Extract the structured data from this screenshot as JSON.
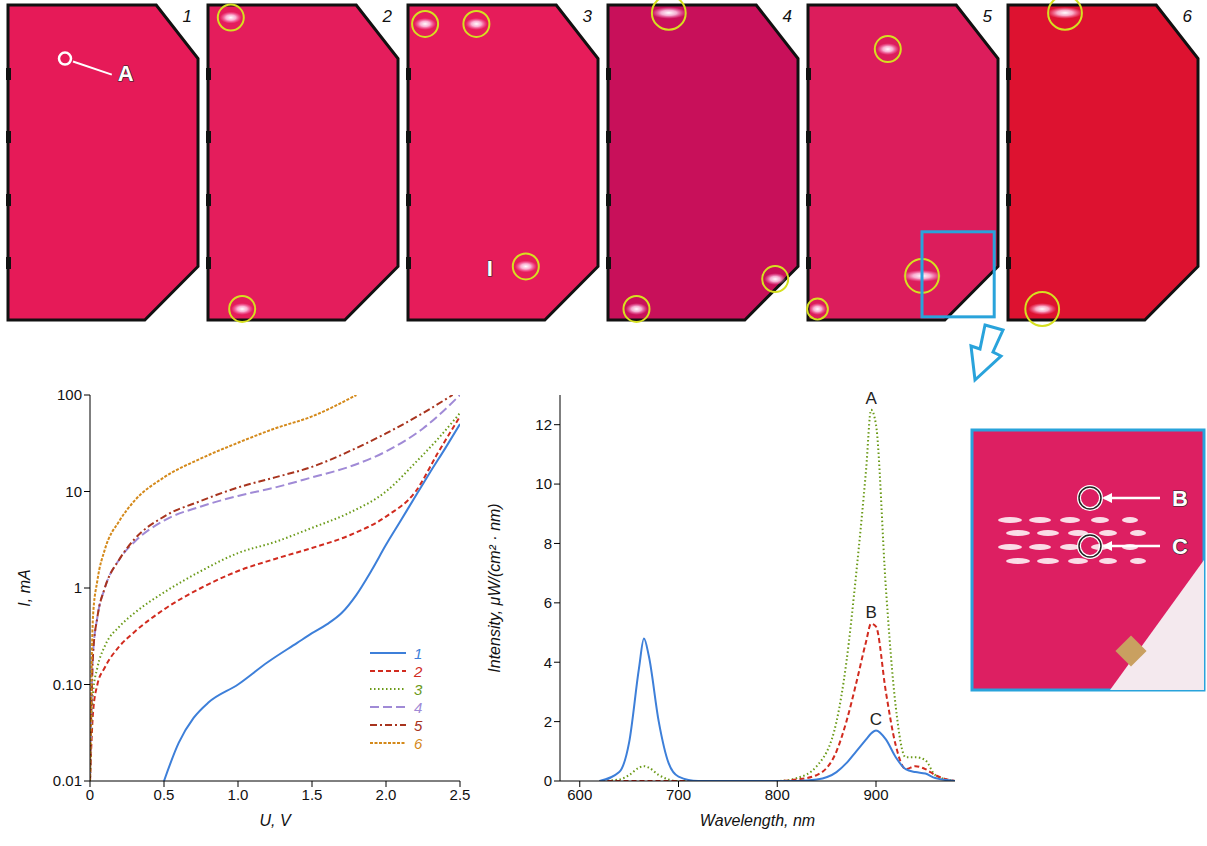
{
  "photos": {
    "panels": [
      {
        "label": "1",
        "markers": [
          "A"
        ]
      },
      {
        "label": "2"
      },
      {
        "label": "3",
        "markers": [
          "I"
        ]
      },
      {
        "label": "4"
      },
      {
        "label": "5"
      },
      {
        "label": "6"
      }
    ],
    "inset": {
      "markers": [
        "B",
        "C"
      ]
    }
  },
  "chart_data": [
    {
      "type": "line",
      "x_label": "U, V",
      "y_label": "I, mA",
      "log": "y",
      "xlim": [
        0,
        2.5
      ],
      "xticks": [
        0,
        0.5,
        {
          "value": 1,
          "label": "1.0"
        },
        1.5,
        {
          "value": 2,
          "label": "2.0"
        },
        2.5
      ],
      "ylim": [
        0.01,
        100
      ],
      "yticks": [
        0.01,
        {
          "value": 0.1,
          "label": "0.10"
        },
        1,
        10,
        100
      ],
      "legend": "lower right",
      "series": [
        {
          "name": "1",
          "color": "#3d7fd9",
          "line_style": "solid",
          "x": [
            0.5,
            0.6,
            0.7,
            0.8,
            1.0,
            1.2,
            1.4,
            1.5,
            1.6,
            1.7,
            1.8,
            1.9,
            2.0,
            2.1,
            2.2,
            2.3,
            2.4,
            2.5
          ],
          "values": [
            0.01,
            0.025,
            0.045,
            0.065,
            0.1,
            0.17,
            0.27,
            0.34,
            0.42,
            0.55,
            0.85,
            1.5,
            2.8,
            5,
            9,
            16,
            28,
            50
          ]
        },
        {
          "name": "2",
          "color": "#d12b1f",
          "line_style": "dashed",
          "x": [
            0,
            0.02,
            0.05,
            0.1,
            0.2,
            0.3,
            0.5,
            0.75,
            1.0,
            1.25,
            1.5,
            1.75,
            2.0,
            2.2,
            2.35,
            2.5
          ],
          "values": [
            0.01,
            0.05,
            0.1,
            0.15,
            0.25,
            0.35,
            0.6,
            1.0,
            1.5,
            2.0,
            2.6,
            3.5,
            5.5,
            10,
            25,
            60
          ]
        },
        {
          "name": "3",
          "color": "#6b9a18",
          "line_style": "dotted",
          "x": [
            0,
            0.02,
            0.05,
            0.1,
            0.2,
            0.3,
            0.5,
            0.75,
            1.0,
            1.25,
            1.5,
            1.75,
            2.0,
            2.2,
            2.35,
            2.5
          ],
          "values": [
            0.01,
            0.08,
            0.15,
            0.25,
            0.4,
            0.55,
            0.9,
            1.5,
            2.3,
            3.0,
            4.2,
            6,
            10,
            20,
            35,
            65
          ]
        },
        {
          "name": "4",
          "color": "#a08ad6",
          "line_style": "long_dashed",
          "x": [
            0,
            0.02,
            0.05,
            0.1,
            0.2,
            0.3,
            0.5,
            0.75,
            1.0,
            1.25,
            1.5,
            1.75,
            2.0,
            2.25,
            2.5
          ],
          "values": [
            0.01,
            0.2,
            0.5,
            1.0,
            2.0,
            3.0,
            5,
            7,
            9,
            11,
            14,
            18,
            26,
            45,
            100
          ]
        },
        {
          "name": "5",
          "color": "#a8341e",
          "line_style": "dash_dot",
          "x": [
            0,
            0.02,
            0.05,
            0.1,
            0.2,
            0.3,
            0.5,
            0.75,
            1.0,
            1.25,
            1.5,
            1.75,
            2.0,
            2.25,
            2.45
          ],
          "values": [
            0.01,
            0.2,
            0.5,
            1.0,
            2.0,
            3.2,
            5.5,
            8,
            11,
            14,
            18,
            26,
            40,
            65,
            100
          ]
        },
        {
          "name": "6",
          "color": "#d4891a",
          "line_style": "dense_dashed",
          "x": [
            0,
            0.02,
            0.05,
            0.1,
            0.2,
            0.3,
            0.5,
            0.75,
            1.0,
            1.25,
            1.5,
            1.8
          ],
          "values": [
            0.01,
            0.5,
            1.2,
            2.5,
            5,
            8,
            14,
            22,
            32,
            45,
            60,
            100
          ]
        }
      ]
    },
    {
      "type": "line",
      "x_label": "Wavelength, nm",
      "y_label": "Intensity, μW/(cm² · nm)",
      "xlim": [
        580,
        980
      ],
      "xticks": [
        600,
        700,
        800,
        900
      ],
      "ylim": [
        0,
        13
      ],
      "yticks": [
        0,
        2,
        4,
        6,
        8,
        10,
        12
      ],
      "x": [
        620,
        640,
        650,
        660,
        665,
        670,
        680,
        690,
        700,
        720,
        800,
        820,
        840,
        860,
        870,
        880,
        890,
        895,
        900,
        910,
        920,
        930,
        940,
        950,
        960,
        980
      ],
      "series": [
        {
          "name": "A",
          "color": "#6b9a18",
          "line_style": "dotted",
          "values": [
            0,
            0.05,
            0.2,
            0.45,
            0.5,
            0.45,
            0.2,
            0.05,
            0,
            0,
            0,
            0.1,
            0.5,
            2.0,
            4.0,
            7.0,
            10.5,
            12.5,
            12.0,
            6.5,
            2.5,
            0.8,
            0.8,
            0.7,
            0.2,
            0
          ]
        },
        {
          "name": "B",
          "color": "#d12b1f",
          "line_style": "dashed",
          "values": [
            0,
            0,
            0,
            0,
            0,
            0,
            0,
            0,
            0,
            0,
            0,
            0.05,
            0.2,
            1.0,
            2.0,
            3.3,
            4.7,
            5.3,
            5.2,
            3.0,
            1.2,
            0.4,
            0.5,
            0.4,
            0.2,
            0
          ]
        },
        {
          "name": "C",
          "color": "#3d7fd9",
          "line_style": "solid",
          "values": [
            0,
            0.3,
            1.3,
            3.8,
            4.8,
            4.2,
            2.0,
            0.6,
            0.15,
            0,
            0,
            0,
            0.05,
            0.3,
            0.6,
            1.0,
            1.4,
            1.6,
            1.7,
            1.4,
            0.8,
            0.4,
            0.3,
            0.25,
            0.1,
            0
          ]
        }
      ]
    }
  ]
}
